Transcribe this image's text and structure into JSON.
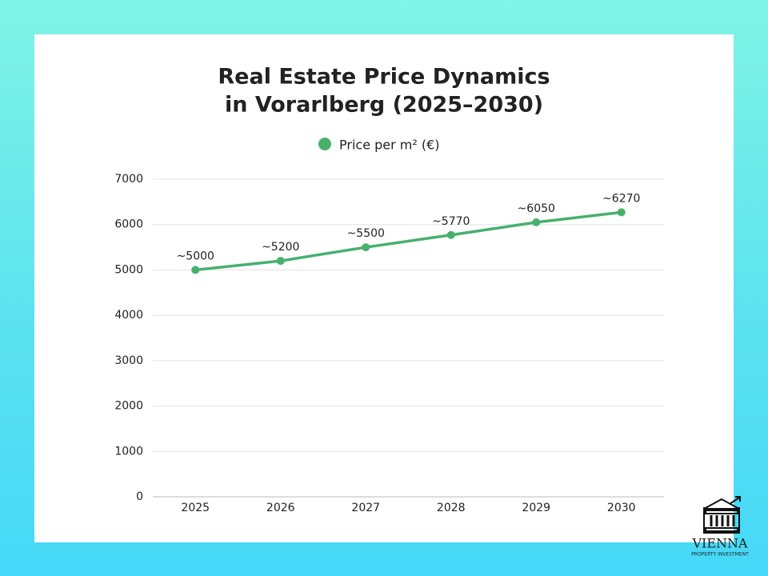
{
  "chart_data": {
    "type": "line",
    "title": [
      "Real Estate Price Dynamics",
      "in Vorarlberg (2025–2030)"
    ],
    "categories": [
      "2025",
      "2026",
      "2027",
      "2028",
      "2029",
      "2030"
    ],
    "series": [
      {
        "name": "Price per m² (€)",
        "color": "#47b06d",
        "values": [
          5000,
          5200,
          5500,
          5770,
          6050,
          6270
        ],
        "value_labels": [
          "~5000",
          "~5200",
          "~5500",
          "~5770",
          "~6050",
          "~6270"
        ]
      }
    ],
    "ylim": [
      0,
      7000
    ],
    "yticks": [
      0,
      1000,
      2000,
      3000,
      4000,
      5000,
      6000,
      7000
    ],
    "grid": true
  },
  "logo": {
    "name": "VIENNA",
    "tagline": "PROPERTY INVESTMENT"
  }
}
